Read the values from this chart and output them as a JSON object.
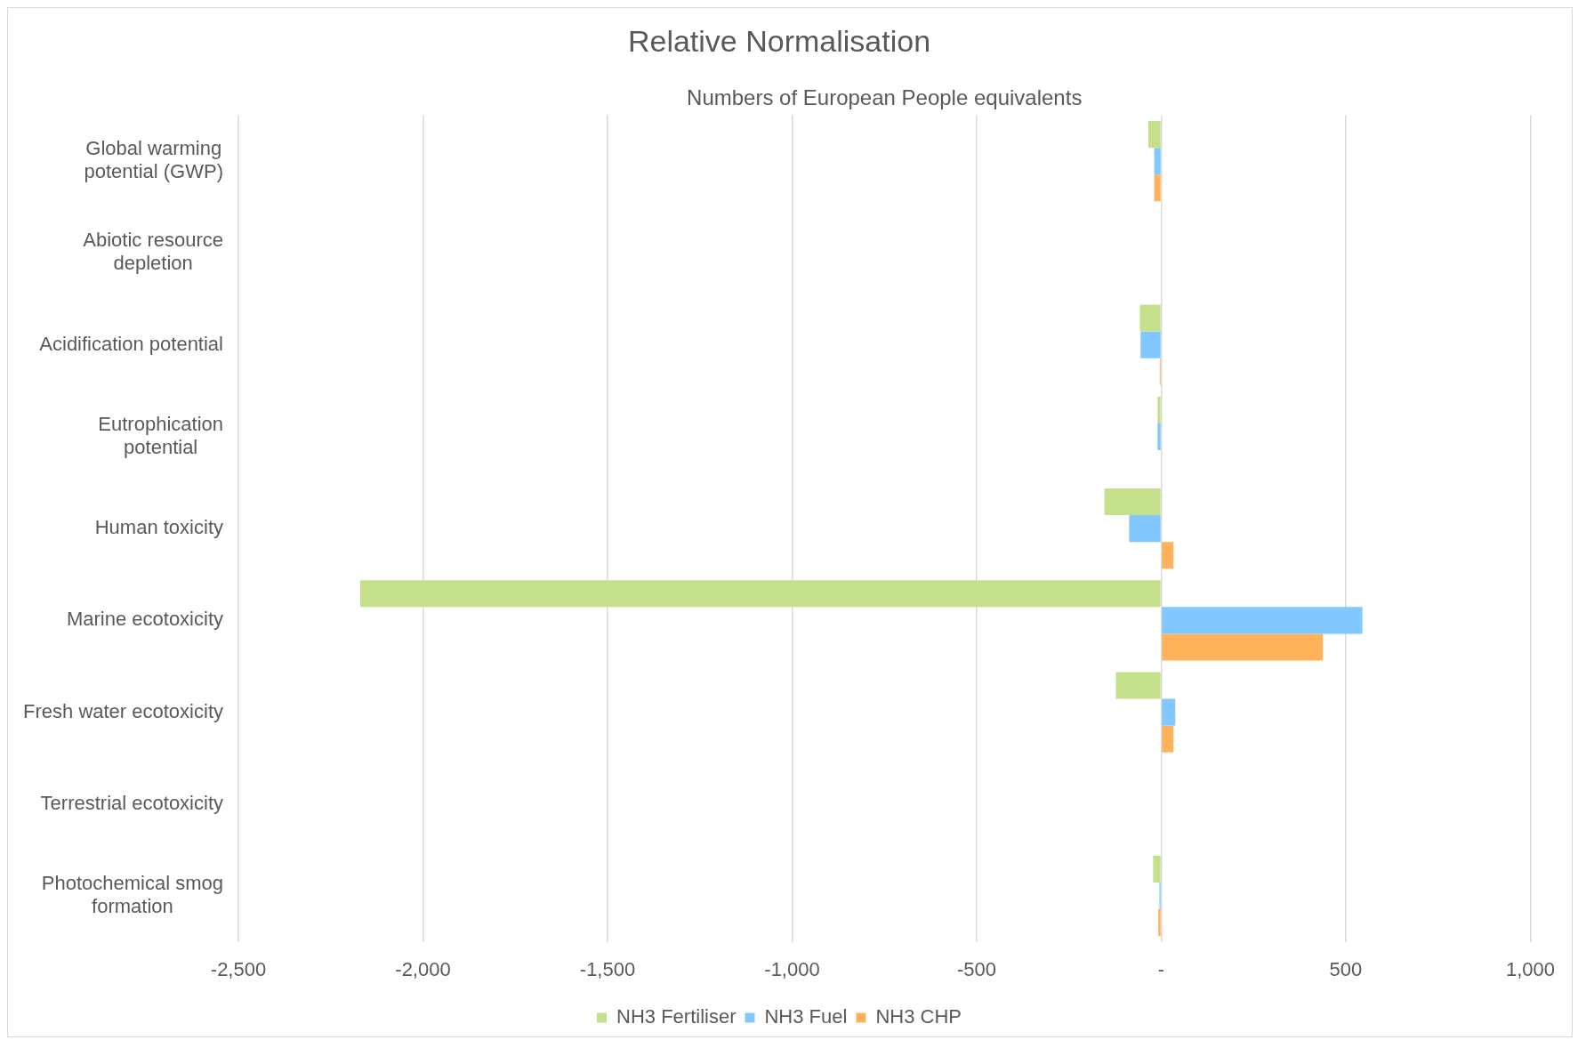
{
  "chart_data": {
    "type": "bar",
    "orientation": "horizontal",
    "title": "Relative Normalisation",
    "xlabel": "Numbers of European People equivalents",
    "categories": [
      "Global warming potential (GWP)",
      "Abiotic resource depletion",
      "Acidification potential",
      "Eutrophication potential",
      "Human toxicity",
      "Marine ecotoxicity",
      "Fresh water ecotoxicity",
      "Terrestrial ecotoxicity",
      "Photochemical smog formation"
    ],
    "series": [
      {
        "name": "NH3 Fertiliser",
        "color": "#c4e08a",
        "values": [
          -35,
          0,
          -58,
          -10,
          -154,
          -2170,
          -123,
          0,
          -22
        ]
      },
      {
        "name": "NH3 Fuel",
        "color": "#80c8ff",
        "values": [
          -19,
          0,
          -56,
          -10,
          -87,
          545,
          38,
          0,
          -5
        ]
      },
      {
        "name": "NH3 CHP",
        "color": "#ffb25a",
        "values": [
          -19,
          0,
          -4,
          0,
          33,
          438,
          33,
          0,
          -8
        ]
      }
    ],
    "xlim": [
      -2500,
      1000
    ],
    "xticks": [
      {
        "value": -2500,
        "label": "-2,500"
      },
      {
        "value": -2000,
        "label": "-2,000"
      },
      {
        "value": -1500,
        "label": "-1,500"
      },
      {
        "value": -1000,
        "label": "-1,000"
      },
      -500,
      {
        "value": 0,
        "label": "-"
      },
      500,
      {
        "value": 1000,
        "label": "1,000"
      }
    ],
    "grid": "x",
    "legend": "bottom"
  }
}
